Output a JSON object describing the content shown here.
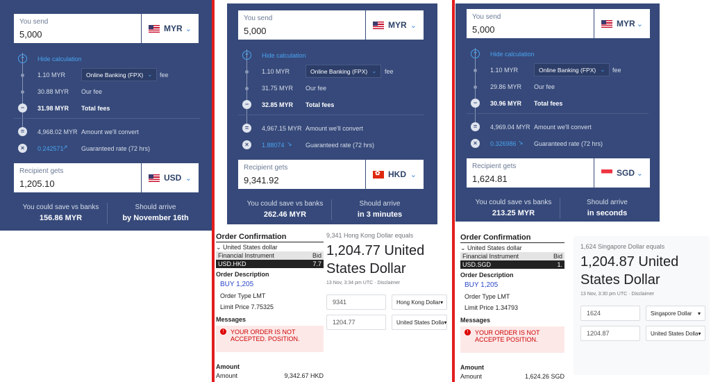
{
  "panels": [
    {
      "send_label": "You send",
      "send_value": "5,000",
      "send_currency": "MYR",
      "hide_calc": "Hide calculation",
      "fee1_amount": "1.10 MYR",
      "fee1_method": "Online Banking (FPX)",
      "fee1_suffix": "fee",
      "fee2_amount": "30.88 MYR",
      "fee2_label": "Our fee",
      "total_amount": "31.98 MYR",
      "total_label": "Total fees",
      "convert_amount": "4,968.02 MYR",
      "convert_label": "Amount we'll convert",
      "rate": "0.242571",
      "rate_label": "Guaranteed rate (72 hrs)",
      "recv_label": "Recipient gets",
      "recv_value": "1,205.10",
      "recv_currency": "USD",
      "save_label": "You could save vs banks",
      "save_value": "156.86 MYR",
      "arrive_label": "Should arrive",
      "arrive_value": "by November 16th"
    },
    {
      "send_label": "You send",
      "send_value": "5,000",
      "send_currency": "MYR",
      "hide_calc": "Hide calculation",
      "fee1_amount": "1.10 MYR",
      "fee1_method": "Online Banking (FPX)",
      "fee1_suffix": "fee",
      "fee2_amount": "31.75 MYR",
      "fee2_label": "Our fee",
      "total_amount": "32.85 MYR",
      "total_label": "Total fees",
      "convert_amount": "4,967.15 MYR",
      "convert_label": "Amount we'll convert",
      "rate": "1.88074",
      "rate_label": "Guaranteed rate (72 hrs)",
      "recv_label": "Recipient gets",
      "recv_value": "9,341.92",
      "recv_currency": "HKD",
      "save_label": "You could save vs banks",
      "save_value": "262.46 MYR",
      "arrive_label": "Should arrive",
      "arrive_value": "in 3 minutes"
    },
    {
      "send_label": "You send",
      "send_value": "5,000",
      "send_currency": "MYR",
      "hide_calc": "Hide calculation",
      "fee1_amount": "1.10 MYR",
      "fee1_method": "Online Banking (FPX)",
      "fee1_suffix": "fee",
      "fee2_amount": "29.86 MYR",
      "fee2_label": "Our fee",
      "total_amount": "30.96 MYR",
      "total_label": "Total fees",
      "convert_amount": "4,969.04 MYR",
      "convert_label": "Amount we'll convert",
      "rate": "0.326986",
      "rate_label": "Guaranteed rate (72 hrs)",
      "recv_label": "Recipient gets",
      "recv_value": "1,624.81",
      "recv_currency": "SGD",
      "save_label": "You could save vs banks",
      "save_value": "213.25 MYR",
      "arrive_label": "Should arrive",
      "arrive_value": "in seconds"
    }
  ],
  "orders": [
    {
      "title": "Order Confirmation",
      "base": "United States dollar",
      "col_instrument": "Financial Instrument",
      "col_bid": "Bid",
      "pair": "USD.HKD",
      "bid": "7.7",
      "desc_title": "Order Description",
      "buy": "BUY 1,205",
      "order_type": "Order Type LMT",
      "limit_price": "Limit Price  7.75325",
      "messages_title": "Messages",
      "message": "YOUR ORDER IS NOT ACCEPTED. POSITION.",
      "amount_title": "Amount",
      "amount_label": "Amount",
      "amount_value": "9,342.67 HKD"
    },
    {
      "title": "Order Confirmation",
      "base": "United States dollar",
      "col_instrument": "Financial Instrument",
      "col_bid": "Bid",
      "pair": "USD.SGD",
      "bid": "1.",
      "desc_title": "Order Description",
      "buy": "BUY 1,205",
      "order_type": "Order Type LMT",
      "limit_price": "Limit Price  1.34793",
      "messages_title": "Messages",
      "message": "YOUR ORDER IS NOT ACCEPTE POSITION.",
      "amount_title": "Amount",
      "amount_label": "Amount",
      "amount_value": "1,624.26 SGD"
    }
  ],
  "google": [
    {
      "equals": "9,341 Hong Kong Dollar equals",
      "result_line1": "1,204.77 United",
      "result_line2": "States Dollar",
      "timestamp": "13 Nov, 3:34 pm UTC · Disclaimer",
      "from_value": "9341",
      "from_currency": "Hong Kong Dollar",
      "to_value": "1204.77",
      "to_currency": "United States Dolla"
    },
    {
      "equals": "1,624 Singapore Dollar equals",
      "result_line1": "1,204.87 United",
      "result_line2": "States Dollar",
      "timestamp": "13 Nov, 3:30 pm UTC · Disclaimer",
      "from_value": "1624",
      "from_currency": "Singapore Dollar",
      "to_value": "1204.87",
      "to_currency": "United States Dolla"
    }
  ],
  "colors": {
    "card_bg": "#36497a",
    "accent": "#4aa3f0",
    "divider_red": "#e21d1d"
  },
  "icons": [
    "chevron-down-icon",
    "flag-us-icon",
    "flag-hk-icon",
    "flag-sg-icon",
    "equals-icon",
    "times-icon",
    "minus-icon",
    "trend-icon",
    "error-icon"
  ]
}
